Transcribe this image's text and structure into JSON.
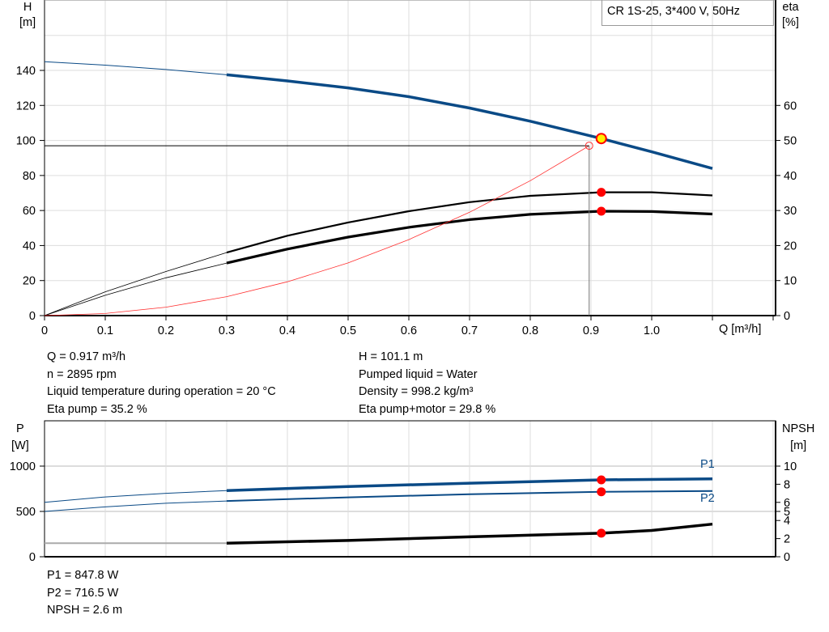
{
  "legend_box": "CR 1S-25, 3*400 V, 50Hz",
  "colors": {
    "head": "#0a4a86",
    "eta": "#000000",
    "system": "#ff3030",
    "operating_point": "#ffee00",
    "marker": "#ff0000",
    "npsh_gray": "#aaaaaa"
  },
  "chart_data": [
    {
      "type": "line",
      "xlabel": "Q [m³/h]",
      "ylabel_left": [
        "H",
        "[m]"
      ],
      "ylabel_right": [
        "eta",
        "[%]"
      ],
      "xlim": [
        0,
        1.2
      ],
      "ylim_left": [
        0,
        180
      ],
      "ylim_right": [
        0,
        90
      ],
      "grid": true,
      "xticks": [
        "0",
        "0.1",
        "0.2",
        "0.3",
        "0.4",
        "0.5",
        "0.6",
        "0.7",
        "0.8",
        "0.9",
        "1.0"
      ],
      "yticks_left": [
        "0",
        "20",
        "40",
        "60",
        "80",
        "100",
        "120",
        "140"
      ],
      "yticks_right": [
        "0",
        "10",
        "20",
        "30",
        "40",
        "50",
        "60"
      ],
      "series": [
        {
          "id": "head",
          "axis": "left",
          "x": [
            0,
            0.1,
            0.2,
            0.3,
            0.4,
            0.5,
            0.6,
            0.7,
            0.8,
            0.917,
            1.0,
            1.1
          ],
          "y": [
            145,
            143,
            140.5,
            137.5,
            134,
            130,
            125,
            118.5,
            111,
            101.1,
            93.5,
            84
          ],
          "valid_from": 0.3
        },
        {
          "id": "eta_pump",
          "axis": "right",
          "x": [
            0,
            0.1,
            0.2,
            0.3,
            0.4,
            0.5,
            0.6,
            0.7,
            0.8,
            0.917,
            1.0,
            1.1
          ],
          "y": [
            0,
            6.8,
            12.6,
            18,
            22.8,
            26.6,
            29.8,
            32.4,
            34.2,
            35.2,
            35.2,
            34.3
          ],
          "valid_from": 0.3
        },
        {
          "id": "eta_pump_motor",
          "axis": "right",
          "x": [
            0,
            0.1,
            0.2,
            0.3,
            0.4,
            0.5,
            0.6,
            0.7,
            0.8,
            0.917,
            1.0,
            1.1
          ],
          "y": [
            0,
            5.8,
            10.8,
            15,
            19,
            22.4,
            25.2,
            27.4,
            28.9,
            29.8,
            29.7,
            29
          ],
          "valid_from": 0.3
        },
        {
          "id": "system",
          "axis": "left",
          "x": [
            0,
            0.1,
            0.2,
            0.3,
            0.4,
            0.5,
            0.6,
            0.7,
            0.8,
            0.897
          ],
          "y": [
            0,
            1.2,
            4.8,
            10.8,
            19.3,
            30.1,
            43.4,
            59,
            77,
            97
          ]
        }
      ],
      "duty_point": {
        "Q": 0.897,
        "H": 97
      },
      "operating_point": {
        "Q": 0.917,
        "H": 101.1,
        "eta_pump": 35.2,
        "eta_pump_motor": 29.8
      }
    },
    {
      "type": "line",
      "ylabel_left": [
        "P",
        "[W]"
      ],
      "ylabel_right": [
        "NPSH",
        "[m]"
      ],
      "xlim": [
        0,
        1.2
      ],
      "ylim_left": [
        0,
        1500
      ],
      "ylim_right": [
        0,
        15
      ],
      "grid": true,
      "yticks_left": [
        "0",
        "500",
        "1000"
      ],
      "yticks_right": [
        "0",
        "2",
        "4",
        "5",
        "6",
        "8",
        "10"
      ],
      "series": [
        {
          "id": "P1",
          "name": "P1",
          "axis": "left",
          "x": [
            0,
            0.1,
            0.2,
            0.3,
            0.5,
            0.7,
            0.917,
            1.1
          ],
          "y": [
            600,
            660,
            700,
            730,
            775,
            812,
            847.8,
            860
          ],
          "valid_from": 0.3
        },
        {
          "id": "P2",
          "name": "P2",
          "axis": "left",
          "x": [
            0,
            0.1,
            0.2,
            0.3,
            0.5,
            0.7,
            0.917,
            1.1
          ],
          "y": [
            500,
            550,
            590,
            615,
            655,
            690,
            716.5,
            725
          ],
          "valid_from": 0.3
        },
        {
          "id": "NPSH",
          "axis": "right",
          "x": [
            0,
            0.3,
            0.5,
            0.7,
            0.917,
            1.0,
            1.1
          ],
          "y": [
            1.5,
            1.5,
            1.8,
            2.2,
            2.6,
            2.9,
            3.6
          ],
          "valid_from": 0.3
        }
      ],
      "operating_point": {
        "Q": 0.917,
        "P1": 847.8,
        "P2": 716.5,
        "NPSH": 2.6
      }
    }
  ],
  "info": {
    "q": "Q = 0.917 m³/h",
    "n": "n = 2895 rpm",
    "temp": "Liquid temperature during operation = 20 °C",
    "eta_pump": "Eta pump = 35.2 %",
    "h": "H = 101.1 m",
    "liquid": "Pumped liquid = Water",
    "density": "Density = 998.2 kg/m³",
    "eta_pm": "Eta pump+motor = 29.8 %"
  },
  "power_info": {
    "p1": "P1 = 847.8 W",
    "p2": "P2 = 716.5 W",
    "npsh": "NPSH = 2.6 m"
  }
}
